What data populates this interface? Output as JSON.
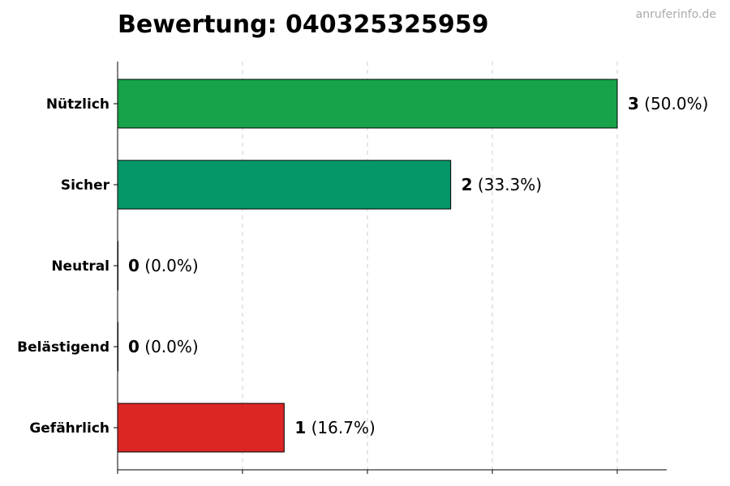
{
  "title": "Bewertung: 040325325959",
  "watermark": "anruferinfo.de",
  "chart_data": {
    "type": "bar",
    "orientation": "horizontal",
    "title": "Bewertung: 040325325959",
    "xlabel": "",
    "ylabel": "",
    "xlim": [
      0,
      3.3
    ],
    "grid": true,
    "categories": [
      "Nützlich",
      "Sicher",
      "Neutral",
      "Belästigend",
      "Gefährlich"
    ],
    "values": [
      3,
      2,
      0,
      0,
      1
    ],
    "percent_labels": [
      "(50.0%)",
      "(33.3%)",
      "(0.0%)",
      "(0.0%)",
      "(16.7%)"
    ],
    "colors": [
      "#17a34a",
      "#05976a",
      "#6b7280",
      "#ea580c",
      "#dc2626"
    ]
  }
}
